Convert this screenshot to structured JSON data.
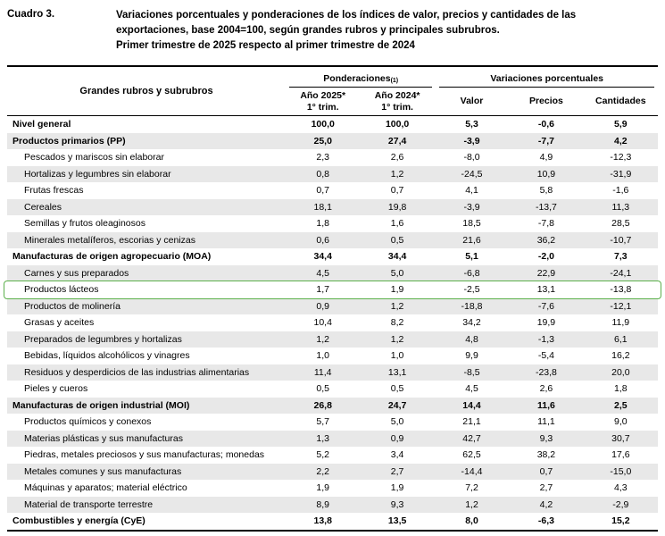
{
  "header": {
    "cuadro_label": "Cuadro 3.",
    "title_line1": "Variaciones porcentuales y ponderaciones de los índices de valor, precios y cantidades de las",
    "title_line2": "exportaciones, base 2004=100, según grandes rubros y principales subrubros.",
    "title_line3": "Primer trimestre de 2025 respecto al primer trimestre de 2024"
  },
  "table": {
    "row_header": "Grandes rubros y subrubros",
    "group_ponderaciones": "Ponderaciones",
    "group_ponderaciones_sup": "(1)",
    "group_variaciones": "Variaciones porcentuales",
    "columns": [
      {
        "line1": "Año 2025*",
        "line2": "1° trim."
      },
      {
        "line1": "Año 2024*",
        "line2": "1° trim."
      },
      {
        "line1": "Valor",
        "line2": ""
      },
      {
        "line1": "Precios",
        "line2": ""
      },
      {
        "line1": "Cantidades",
        "line2": ""
      }
    ],
    "rows": [
      {
        "label": "Nivel general",
        "group": true,
        "highlight": false,
        "values": [
          "100,0",
          "100,0",
          "5,3",
          "-0,6",
          "5,9"
        ]
      },
      {
        "label": "Productos primarios (PP)",
        "group": true,
        "highlight": false,
        "values": [
          "25,0",
          "27,4",
          "-3,9",
          "-7,7",
          "4,2"
        ]
      },
      {
        "label": "Pescados y mariscos sin elaborar",
        "group": false,
        "highlight": false,
        "values": [
          "2,3",
          "2,6",
          "-8,0",
          "4,9",
          "-12,3"
        ]
      },
      {
        "label": "Hortalizas y legumbres sin elaborar",
        "group": false,
        "highlight": false,
        "values": [
          "0,8",
          "1,2",
          "-24,5",
          "10,9",
          "-31,9"
        ]
      },
      {
        "label": "Frutas frescas",
        "group": false,
        "highlight": false,
        "values": [
          "0,7",
          "0,7",
          "4,1",
          "5,8",
          "-1,6"
        ]
      },
      {
        "label": "Cereales",
        "group": false,
        "highlight": false,
        "values": [
          "18,1",
          "19,8",
          "-3,9",
          "-13,7",
          "11,3"
        ]
      },
      {
        "label": "Semillas y frutos oleaginosos",
        "group": false,
        "highlight": false,
        "values": [
          "1,8",
          "1,6",
          "18,5",
          "-7,8",
          "28,5"
        ]
      },
      {
        "label": "Minerales metalíferos, escorias y cenizas",
        "group": false,
        "highlight": false,
        "values": [
          "0,6",
          "0,5",
          "21,6",
          "36,2",
          "-10,7"
        ]
      },
      {
        "label": "Manufacturas de origen agropecuario (MOA)",
        "group": true,
        "highlight": false,
        "values": [
          "34,4",
          "34,4",
          "5,1",
          "-2,0",
          "7,3"
        ]
      },
      {
        "label": "Carnes y sus preparados",
        "group": false,
        "highlight": false,
        "values": [
          "4,5",
          "5,0",
          "-6,8",
          "22,9",
          "-24,1"
        ]
      },
      {
        "label": "Productos lácteos",
        "group": false,
        "highlight": true,
        "values": [
          "1,7",
          "1,9",
          "-2,5",
          "13,1",
          "-13,8"
        ]
      },
      {
        "label": "Productos de molinería",
        "group": false,
        "highlight": false,
        "values": [
          "0,9",
          "1,2",
          "-18,8",
          "-7,6",
          "-12,1"
        ]
      },
      {
        "label": "Grasas y aceites",
        "group": false,
        "highlight": false,
        "values": [
          "10,4",
          "8,2",
          "34,2",
          "19,9",
          "11,9"
        ]
      },
      {
        "label": "Preparados de legumbres y hortalizas",
        "group": false,
        "highlight": false,
        "values": [
          "1,2",
          "1,2",
          "4,8",
          "-1,3",
          "6,1"
        ]
      },
      {
        "label": "Bebidas, líquidos alcohólicos y vinagres",
        "group": false,
        "highlight": false,
        "values": [
          "1,0",
          "1,0",
          "9,9",
          "-5,4",
          "16,2"
        ]
      },
      {
        "label": "Residuos y desperdicios de las industrias alimentarias",
        "group": false,
        "highlight": false,
        "values": [
          "11,4",
          "13,1",
          "-8,5",
          "-23,8",
          "20,0"
        ]
      },
      {
        "label": "Pieles y cueros",
        "group": false,
        "highlight": false,
        "values": [
          "0,5",
          "0,5",
          "4,5",
          "2,6",
          "1,8"
        ]
      },
      {
        "label": "Manufacturas de origen industrial (MOI)",
        "group": true,
        "highlight": false,
        "values": [
          "26,8",
          "24,7",
          "14,4",
          "11,6",
          "2,5"
        ]
      },
      {
        "label": "Productos químicos y conexos",
        "group": false,
        "highlight": false,
        "values": [
          "5,7",
          "5,0",
          "21,1",
          "11,1",
          "9,0"
        ]
      },
      {
        "label": "Materias plásticas y sus manufacturas",
        "group": false,
        "highlight": false,
        "values": [
          "1,3",
          "0,9",
          "42,7",
          "9,3",
          "30,7"
        ]
      },
      {
        "label": "Piedras, metales preciosos y sus manufacturas; monedas",
        "group": false,
        "highlight": false,
        "values": [
          "5,2",
          "3,4",
          "62,5",
          "38,2",
          "17,6"
        ]
      },
      {
        "label": "Metales comunes y sus manufacturas",
        "group": false,
        "highlight": false,
        "values": [
          "2,2",
          "2,7",
          "-14,4",
          "0,7",
          "-15,0"
        ]
      },
      {
        "label": "Máquinas y aparatos; material eléctrico",
        "group": false,
        "highlight": false,
        "values": [
          "1,9",
          "1,9",
          "7,2",
          "2,7",
          "4,3"
        ]
      },
      {
        "label": "Material de transporte terrestre",
        "group": false,
        "highlight": false,
        "values": [
          "8,9",
          "9,3",
          "1,2",
          "4,2",
          "-2,9"
        ]
      },
      {
        "label": "Combustibles y energía (CyE)",
        "group": true,
        "highlight": false,
        "values": [
          "13,8",
          "13,5",
          "8,0",
          "-6,3",
          "15,2"
        ]
      }
    ]
  },
  "colors": {
    "row_shade": "#e8e8e8",
    "highlight_green": "#5cb04c",
    "border_black": "#000000"
  }
}
